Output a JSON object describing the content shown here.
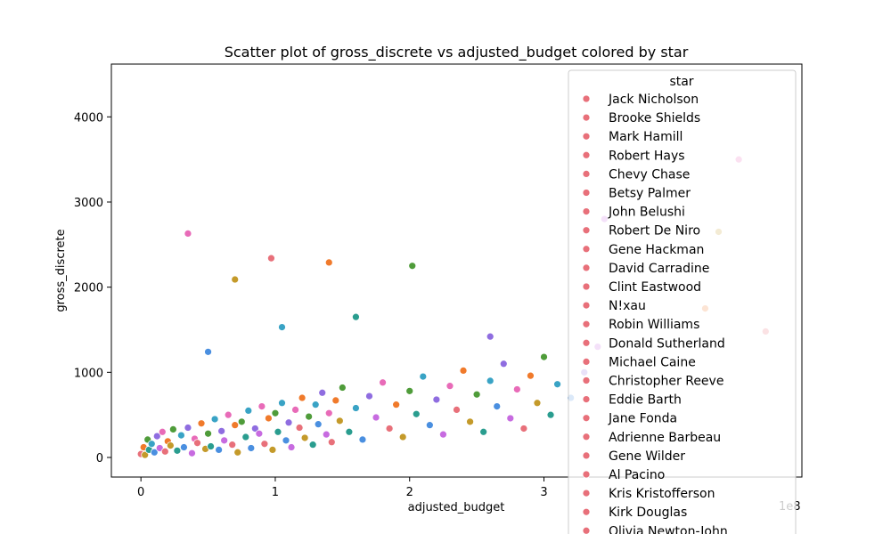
{
  "chart_data": {
    "type": "scatter",
    "title": "Scatter plot of gross_discrete vs adjusted_budget colored by star",
    "xlabel": "adjusted_budget",
    "ylabel": "gross_discrete",
    "x_offset_label": "1e8",
    "xlim": [
      -0.22,
      4.92
    ],
    "ylim": [
      -230,
      4620
    ],
    "x_ticks": [
      0,
      1,
      2,
      3
    ],
    "x_tick_labels": [
      "0",
      "1",
      "2",
      "3"
    ],
    "y_ticks": [
      0,
      1000,
      2000,
      3000,
      4000
    ],
    "y_tick_labels": [
      "0",
      "1000",
      "2000",
      "3000",
      "4000"
    ],
    "grid": false,
    "legend": {
      "title": "star",
      "placement": "top-right",
      "entries": [
        "Jack Nicholson",
        "Brooke Shields",
        "Mark Hamill",
        "Robert Hays",
        "Chevy Chase",
        "Betsy Palmer",
        "John Belushi",
        "Robert De Niro",
        "Gene Hackman",
        "David Carradine",
        "Clint Eastwood",
        "N!xau",
        "Robin Williams",
        "Donald Sutherland",
        "Michael Caine",
        "Christopher Reeve",
        "Eddie Barth",
        "Jane Fonda",
        "Adrienne Barbeau",
        "Gene Wilder",
        "Al Pacino",
        "Kris Kristofferson",
        "Kirk Douglas",
        "Olivia Newton-John"
      ],
      "marker_color": "#e8707a"
    },
    "palette": [
      "#e8707a",
      "#f07a2b",
      "#c49a2a",
      "#4f9c3a",
      "#2a9d8f",
      "#39a3c5",
      "#4a8fe0",
      "#8f6de0",
      "#c76be0",
      "#e86bb8"
    ],
    "series": [
      {
        "x": [
          0.0,
          0.02,
          0.03,
          0.05,
          0.06,
          0.08,
          0.1,
          0.12,
          0.14,
          0.16,
          0.18,
          0.2,
          0.22,
          0.24,
          0.27,
          0.3,
          0.32,
          0.35,
          0.38,
          0.4,
          0.42,
          0.45,
          0.48,
          0.5,
          0.52,
          0.55,
          0.58,
          0.6,
          0.62,
          0.65,
          0.68,
          0.7,
          0.72,
          0.75,
          0.78,
          0.8,
          0.82,
          0.85,
          0.88,
          0.9,
          0.92,
          0.95,
          0.98,
          1.0,
          1.02,
          1.05,
          1.08,
          1.1,
          1.12,
          1.15,
          1.18,
          1.2,
          1.22,
          1.25,
          1.28,
          1.3,
          1.32,
          1.35,
          1.38,
          1.4,
          1.42,
          1.45,
          1.48,
          1.5,
          1.55,
          1.6,
          1.65,
          1.7,
          1.75,
          1.8,
          1.85,
          1.9,
          1.95,
          2.0,
          2.05,
          2.1,
          2.15,
          2.2,
          2.25,
          2.3,
          2.35,
          2.4,
          2.45,
          2.5,
          2.55,
          2.6,
          2.65,
          2.7,
          2.75,
          2.8,
          2.85,
          2.9,
          2.95,
          3.0,
          3.05,
          3.1,
          3.2,
          3.3,
          3.4,
          0.35,
          0.97,
          1.4,
          0.7,
          2.02,
          1.6,
          1.05,
          0.5,
          2.6,
          3.45,
          4.45,
          4.65,
          4.2,
          4.3
        ],
        "y": [
          40,
          120,
          30,
          210,
          90,
          160,
          60,
          250,
          110,
          300,
          70,
          190,
          140,
          330,
          80,
          260,
          120,
          350,
          50,
          220,
          170,
          400,
          100,
          280,
          130,
          450,
          90,
          310,
          200,
          500,
          150,
          380,
          60,
          420,
          240,
          550,
          110,
          340,
          280,
          600,
          160,
          460,
          90,
          520,
          300,
          640,
          200,
          410,
          120,
          560,
          350,
          700,
          230,
          480,
          150,
          620,
          390,
          760,
          270,
          520,
          180,
          670,
          430,
          820,
          300,
          580,
          210,
          720,
          470,
          880,
          340,
          620,
          240,
          780,
          510,
          950,
          380,
          680,
          270,
          840,
          560,
          1020,
          420,
          740,
          300,
          900,
          600,
          1100,
          460,
          800,
          340,
          960,
          640,
          1180,
          500,
          860,
          700,
          1000,
          1300,
          2630,
          2340,
          2290,
          2090,
          2250,
          1650,
          1530,
          1240,
          1420,
          2800,
          3500,
          1480,
          1750,
          2650
        ]
      }
    ]
  }
}
